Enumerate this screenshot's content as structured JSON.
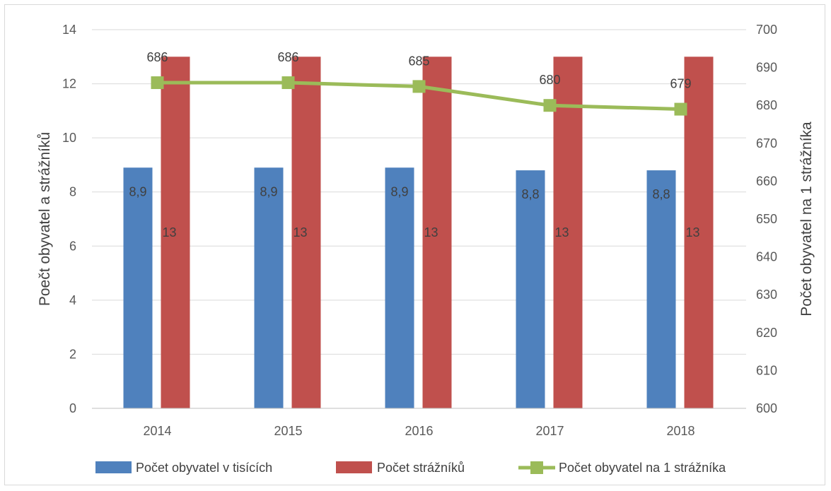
{
  "chart_data": {
    "type": "bar",
    "categories": [
      "2014",
      "2015",
      "2016",
      "2017",
      "2018"
    ],
    "series": [
      {
        "name": "Počet obyvatel v tisících",
        "type": "bar",
        "axis": "left",
        "color": "#4f81bd",
        "values": [
          8.9,
          8.9,
          8.9,
          8.8,
          8.8
        ],
        "labels": [
          "8,9",
          "8,9",
          "8,9",
          "8,8",
          "8,8"
        ]
      },
      {
        "name": "Počet strážníků",
        "type": "bar",
        "axis": "left",
        "color": "#c0504d",
        "values": [
          13,
          13,
          13,
          13,
          13
        ],
        "labels": [
          "13",
          "13",
          "13",
          "13",
          "13"
        ]
      },
      {
        "name": "Počet obyvatel na 1 strážníka",
        "type": "line",
        "axis": "right",
        "color": "#9bbb59",
        "values": [
          686,
          686,
          685,
          680,
          679
        ],
        "labels": [
          "686",
          "686",
          "685",
          "680",
          "679"
        ]
      }
    ],
    "ylabel": "Poečt obyvatel a strážníků",
    "y2label": "Počet obyvatel na 1 strážníka",
    "ylim": [
      0,
      14
    ],
    "y_ticks": [
      "0",
      "2",
      "4",
      "6",
      "8",
      "10",
      "12",
      "14"
    ],
    "y2lim": [
      600,
      700
    ],
    "y2_ticks": [
      "600",
      "610",
      "620",
      "630",
      "640",
      "650",
      "660",
      "670",
      "680",
      "690",
      "700"
    ],
    "grid": true,
    "legend_position": "bottom"
  }
}
